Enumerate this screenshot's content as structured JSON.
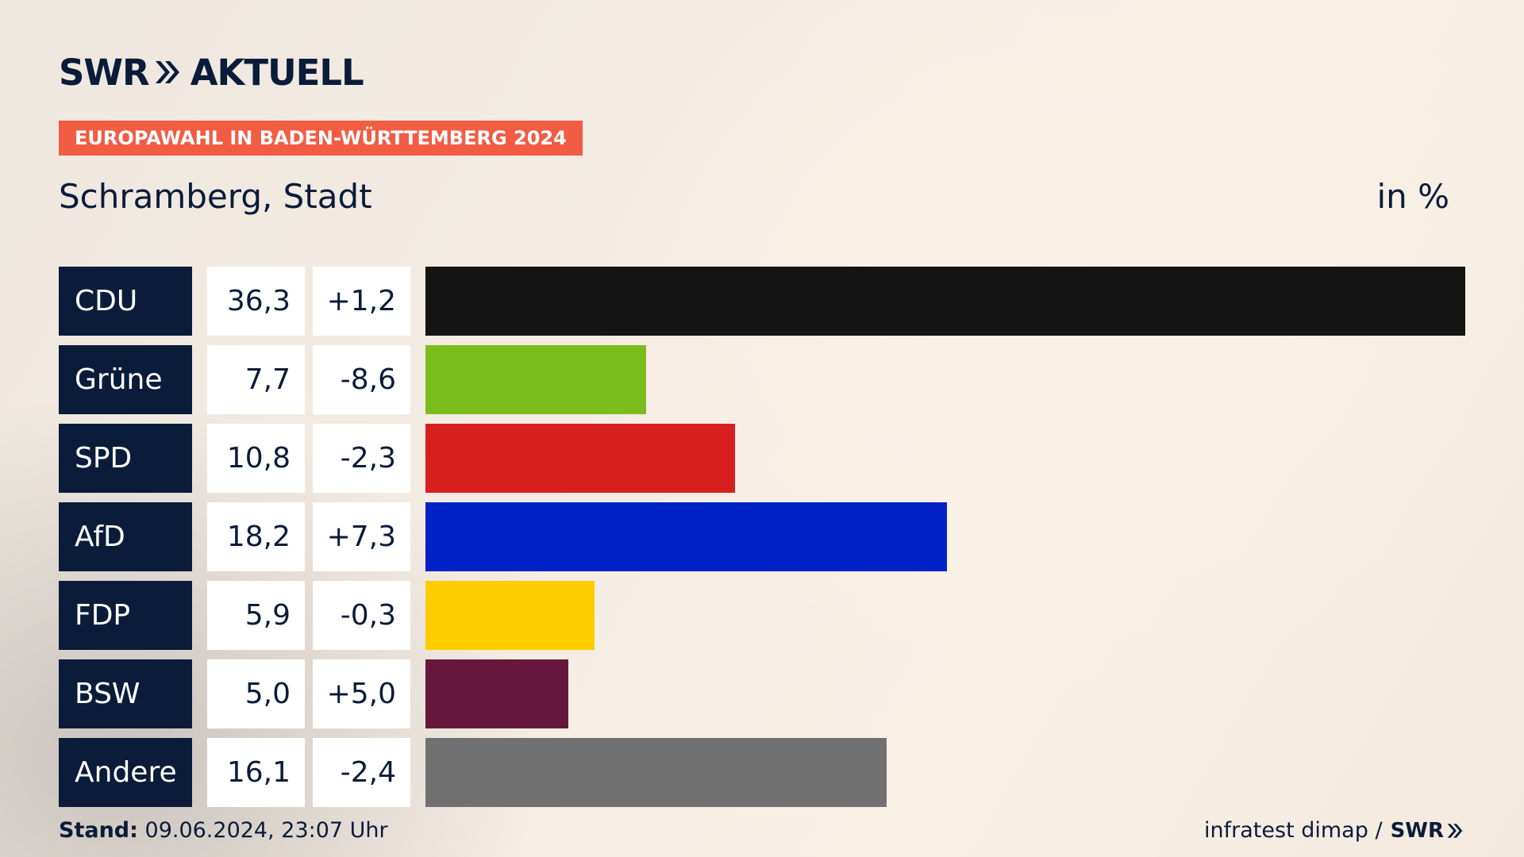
{
  "brand": {
    "logo_left": "SWR",
    "logo_right": "AKTUELL",
    "mini_logo": "SWR"
  },
  "header": {
    "tag": "EUROPAWAHL IN BADEN-WÜRTTEMBERG 2024",
    "region": "Schramberg, Stadt",
    "unit": "in %"
  },
  "footer": {
    "stand_label": "Stand:",
    "stand_value": "09.06.2024, 23:07 Uhr",
    "source": "infratest dimap /"
  },
  "chart_data": {
    "type": "bar",
    "orientation": "horizontal",
    "categories": [
      "CDU",
      "Grüne",
      "SPD",
      "AfD",
      "FDP",
      "BSW",
      "Andere"
    ],
    "values": [
      36.3,
      7.7,
      10.8,
      18.2,
      5.9,
      5.0,
      16.1
    ],
    "value_labels": [
      "36,3",
      "7,7",
      "10,8",
      "18,2",
      "5,9",
      "5,0",
      "16,1"
    ],
    "change_labels": [
      "+1,2",
      "-8,6",
      "-2,3",
      "+7,3",
      "-0,3",
      "+5,0",
      "-2,4"
    ],
    "changes": [
      1.2,
      -8.6,
      -2.3,
      7.3,
      -0.3,
      5.0,
      -2.4
    ],
    "colors": [
      "#141414",
      "#7bbd1d",
      "#d71f1f",
      "#0022c6",
      "#ffcc00",
      "#66183c",
      "#717171"
    ],
    "xlim": [
      0,
      36.3
    ]
  }
}
